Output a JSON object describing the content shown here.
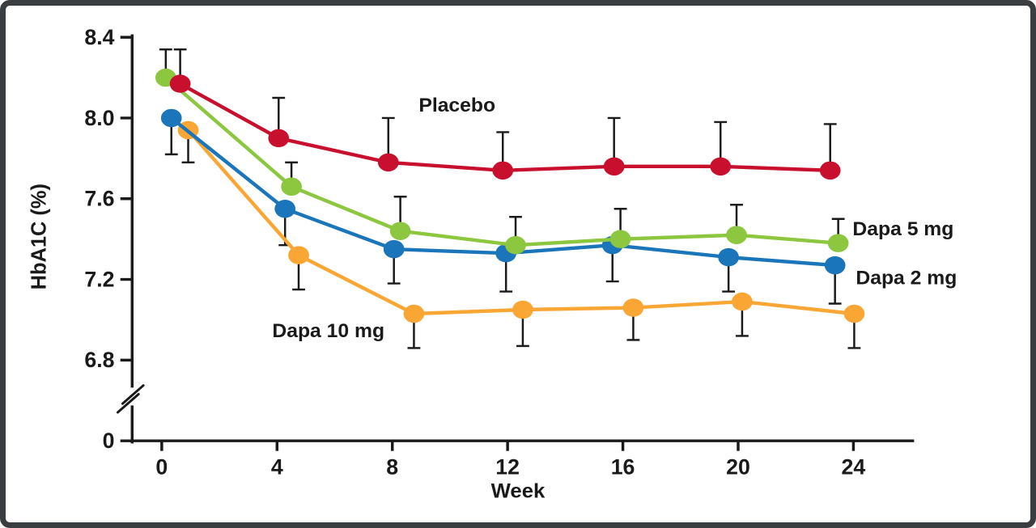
{
  "figure": {
    "border_color": "#3a3e41",
    "background_color": "#ffffff",
    "axis_color": "#1a1a1a"
  },
  "chart_data": {
    "type": "line",
    "title": "",
    "xlabel": "Week",
    "ylabel": "HbA1C (%)",
    "x": [
      0,
      4,
      8,
      12,
      16,
      20,
      24
    ],
    "xticks": [
      "0",
      "4",
      "8",
      "12",
      "16",
      "20",
      "24"
    ],
    "yticks": [
      "8.4",
      "8.0",
      "7.6",
      "7.2",
      "6.8",
      "0"
    ],
    "ylim_display": [
      6.8,
      8.4
    ],
    "axis_break": true,
    "grid": false,
    "legend_position": "inline-annotations",
    "error_bar_color": "#1a1a1a",
    "series": [
      {
        "name": "Placebo",
        "color": "#c8102e",
        "values": [
          8.17,
          7.9,
          7.78,
          7.74,
          7.76,
          7.76,
          7.74
        ],
        "errors": [
          0.17,
          0.2,
          0.22,
          0.19,
          0.24,
          0.22,
          0.23
        ],
        "error_direction": "up"
      },
      {
        "name": "Dapa 5 mg",
        "color": "#8dc63f",
        "values": [
          8.2,
          7.66,
          7.44,
          7.37,
          7.4,
          7.42,
          7.38
        ],
        "errors": [
          0.14,
          0.12,
          0.17,
          0.14,
          0.15,
          0.15,
          0.12
        ],
        "error_direction": "up"
      },
      {
        "name": "Dapa 2 mg",
        "color": "#1b75bb",
        "values": [
          8.0,
          7.55,
          7.35,
          7.33,
          7.37,
          7.31,
          7.27
        ],
        "errors": [
          0.18,
          0.18,
          0.17,
          0.19,
          0.18,
          0.17,
          0.19
        ],
        "error_direction": "down"
      },
      {
        "name": "Dapa 10 mg",
        "color": "#faa634",
        "values": [
          7.94,
          7.32,
          7.03,
          7.05,
          7.06,
          7.09,
          7.03
        ],
        "errors": [
          0.16,
          0.17,
          0.17,
          0.18,
          0.16,
          0.17,
          0.17
        ],
        "error_direction": "down"
      }
    ]
  }
}
